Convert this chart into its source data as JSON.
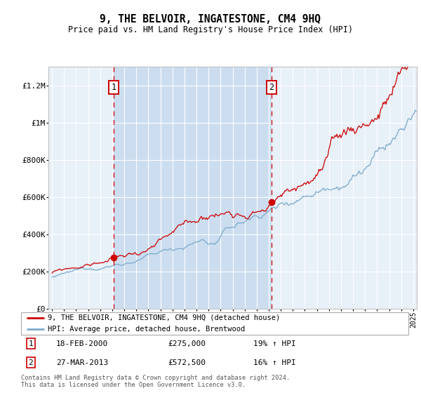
{
  "title": "9, THE BELVOIR, INGATESTONE, CM4 9HQ",
  "subtitle": "Price paid vs. HM Land Registry's House Price Index (HPI)",
  "footer": "Contains HM Land Registry data © Crown copyright and database right 2024.\nThis data is licensed under the Open Government Licence v3.0.",
  "legend1": "9, THE BELVOIR, INGATESTONE, CM4 9HQ (detached house)",
  "legend2": "HPI: Average price, detached house, Brentwood",
  "sale1_date": 2000.12,
  "sale1_price": 275000,
  "sale1_label": "1",
  "sale1_text": "18-FEB-2000",
  "sale1_amount": "£275,000",
  "sale1_pct": "19% ↑ HPI",
  "sale2_date": 2013.23,
  "sale2_price": 572500,
  "sale2_label": "2",
  "sale2_text": "27-MAR-2013",
  "sale2_amount": "£572,500",
  "sale2_pct": "16% ↑ HPI",
  "ylim": [
    0,
    1300000
  ],
  "xlim_start": 1994.7,
  "xlim_end": 2025.3,
  "plot_bg": "#e8f0f8",
  "shade_color": "#ccddf0",
  "grid_color": "#ffffff",
  "red_line_color": "#cc0000",
  "blue_line_color": "#7aaacc",
  "shade_start": 2000.12,
  "shade_end": 2013.23,
  "yticks": [
    0,
    200000,
    400000,
    600000,
    800000,
    1000000,
    1200000
  ],
  "ylabels": [
    "£0",
    "£200K",
    "£400K",
    "£600K",
    "£800K",
    "£1M",
    "£1.2M"
  ]
}
